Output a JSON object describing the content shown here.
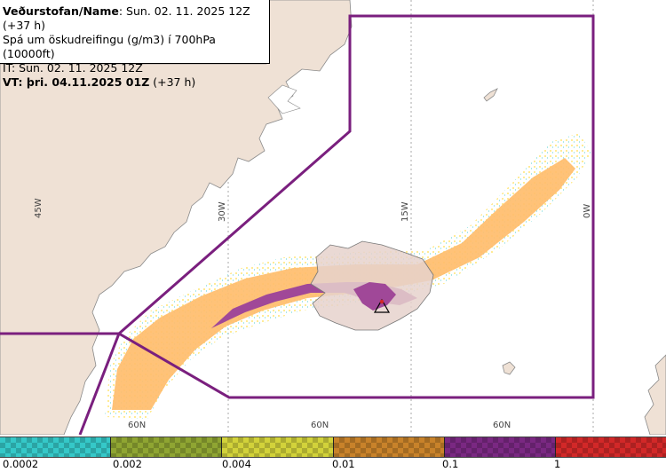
{
  "header": {
    "line1_bold": "Veðurstofan/Name",
    "line1_rest": ": Sun. 02. 11. 2025 12Z (+37 h)",
    "line2": "Spá um öskudreifingu (g/m3) í 700hPa (10000ft)",
    "line3": "IT: Sun. 02. 11. 2025 12Z",
    "line4_bold": "VT: þri. 04.11.2025 01Z",
    "line4_rest": " (+37 h)"
  },
  "grid": {
    "lon_labels": [
      "45W",
      "30W",
      "15W",
      "0W"
    ],
    "lat_labels": [
      "60N",
      "60N",
      "60N"
    ]
  },
  "legend": {
    "colors": [
      "#35c8c8",
      "#8fa532",
      "#d2d23a",
      "#c8822a",
      "#7a2882",
      "#d22828"
    ],
    "ticks": [
      "0.0002",
      "0.002",
      "0.004",
      "0.01",
      "0.1",
      "1"
    ]
  },
  "colors": {
    "land": "#efe1d5",
    "sea": "#ffffff",
    "boundary": "#7a1f7e",
    "ash_low": "#ffbd6c",
    "ash_high": "#a04898"
  },
  "icons": {
    "volcano": "volcano-triangle-icon"
  }
}
